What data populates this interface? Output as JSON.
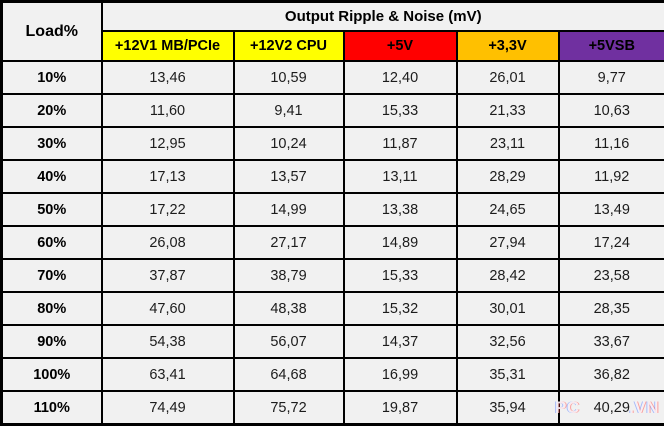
{
  "table": {
    "load_header": "Load%",
    "group_header": "Output Ripple & Noise (mV)",
    "columns": [
      {
        "label": "+12V1 MB/PCIe",
        "color": "#ffff00",
        "text_color": "#000000"
      },
      {
        "label": "+12V2 CPU",
        "color": "#ffff00",
        "text_color": "#000000"
      },
      {
        "label": "+5V",
        "color": "#ff0000",
        "text_color": "#000000"
      },
      {
        "label": "+3,3V",
        "color": "#ffc000",
        "text_color": "#000000"
      },
      {
        "label": "+5VSB",
        "color": "#7030a0",
        "text_color": "#000000"
      }
    ],
    "rows": [
      {
        "load": "10%",
        "values": [
          "13,46",
          "10,59",
          "12,40",
          "26,01",
          "9,77"
        ]
      },
      {
        "load": "20%",
        "values": [
          "11,60",
          "9,41",
          "15,33",
          "21,33",
          "10,63"
        ]
      },
      {
        "load": "30%",
        "values": [
          "12,95",
          "10,24",
          "11,87",
          "23,11",
          "11,16"
        ]
      },
      {
        "load": "40%",
        "values": [
          "17,13",
          "13,57",
          "13,11",
          "28,29",
          "11,92"
        ]
      },
      {
        "load": "50%",
        "values": [
          "17,22",
          "14,99",
          "13,38",
          "24,65",
          "13,49"
        ]
      },
      {
        "load": "60%",
        "values": [
          "26,08",
          "27,17",
          "14,89",
          "27,94",
          "17,24"
        ]
      },
      {
        "load": "70%",
        "values": [
          "37,87",
          "38,79",
          "15,33",
          "28,42",
          "23,58"
        ]
      },
      {
        "load": "80%",
        "values": [
          "47,60",
          "48,38",
          "15,32",
          "30,01",
          "28,35"
        ]
      },
      {
        "load": "90%",
        "values": [
          "54,38",
          "56,07",
          "14,37",
          "32,56",
          "33,67"
        ]
      },
      {
        "load": "100%",
        "values": [
          "63,41",
          "64,68",
          "16,99",
          "35,31",
          "36,82"
        ]
      },
      {
        "load": "110%",
        "values": [
          "74,49",
          "75,72",
          "19,87",
          "35,94",
          "40,29"
        ]
      }
    ]
  },
  "watermark": {
    "prefix": "PC",
    "suffix": ".VN"
  },
  "chart_data": {
    "type": "table",
    "title": "Output Ripple & Noise (mV)",
    "row_header": "Load%",
    "categories": [
      "10%",
      "20%",
      "30%",
      "40%",
      "50%",
      "60%",
      "70%",
      "80%",
      "90%",
      "100%",
      "110%"
    ],
    "series": [
      {
        "name": "+12V1 MB/PCIe",
        "values": [
          13.46,
          11.6,
          12.95,
          17.13,
          17.22,
          26.08,
          37.87,
          47.6,
          54.38,
          63.41,
          74.49
        ]
      },
      {
        "name": "+12V2 CPU",
        "values": [
          10.59,
          9.41,
          10.24,
          13.57,
          14.99,
          27.17,
          38.79,
          48.38,
          56.07,
          64.68,
          75.72
        ]
      },
      {
        "name": "+5V",
        "values": [
          12.4,
          15.33,
          11.87,
          13.11,
          13.38,
          14.89,
          15.33,
          15.32,
          14.37,
          16.99,
          19.87
        ]
      },
      {
        "name": "+3,3V",
        "values": [
          26.01,
          21.33,
          23.11,
          28.29,
          24.65,
          27.94,
          28.42,
          30.01,
          32.56,
          35.31,
          35.94
        ]
      },
      {
        "name": "+5VSB",
        "values": [
          9.77,
          10.63,
          11.16,
          11.92,
          13.49,
          17.24,
          23.58,
          28.35,
          33.67,
          36.82,
          40.29
        ]
      }
    ],
    "header_colors": [
      "#ffff00",
      "#ffff00",
      "#ff0000",
      "#ffc000",
      "#7030a0"
    ],
    "decimal_separator": ","
  }
}
